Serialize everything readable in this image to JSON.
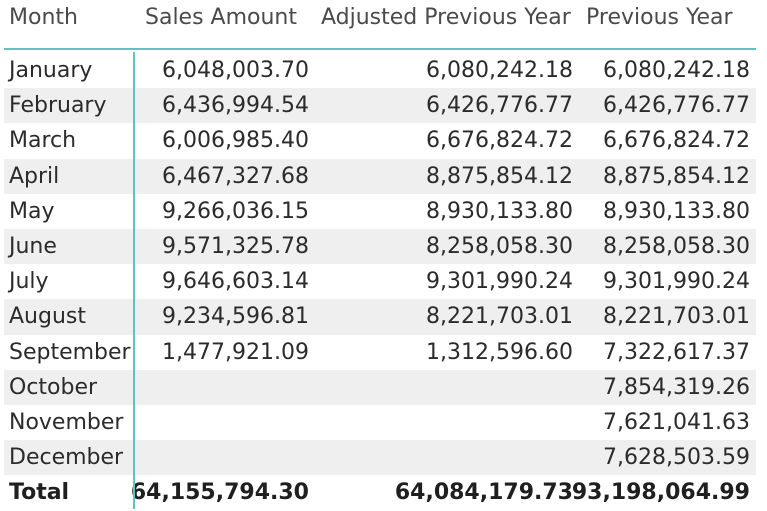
{
  "columns": {
    "month": "Month",
    "sales": "Sales Amount",
    "adjusted": "Adjusted Previous Year",
    "previous": "Previous Year"
  },
  "rows": [
    {
      "month": "January",
      "sales": "6,048,003.70",
      "adjusted": "6,080,242.18",
      "previous": "6,080,242.18"
    },
    {
      "month": "February",
      "sales": "6,436,994.54",
      "adjusted": "6,426,776.77",
      "previous": "6,426,776.77"
    },
    {
      "month": "March",
      "sales": "6,006,985.40",
      "adjusted": "6,676,824.72",
      "previous": "6,676,824.72"
    },
    {
      "month": "April",
      "sales": "6,467,327.68",
      "adjusted": "8,875,854.12",
      "previous": "8,875,854.12"
    },
    {
      "month": "May",
      "sales": "9,266,036.15",
      "adjusted": "8,930,133.80",
      "previous": "8,930,133.80"
    },
    {
      "month": "June",
      "sales": "9,571,325.78",
      "adjusted": "8,258,058.30",
      "previous": "8,258,058.30"
    },
    {
      "month": "July",
      "sales": "9,646,603.14",
      "adjusted": "9,301,990.24",
      "previous": "9,301,990.24"
    },
    {
      "month": "August",
      "sales": "9,234,596.81",
      "adjusted": "8,221,703.01",
      "previous": "8,221,703.01"
    },
    {
      "month": "September",
      "sales": "1,477,921.09",
      "adjusted": "1,312,596.60",
      "previous": "7,322,617.37"
    },
    {
      "month": "October",
      "sales": "",
      "adjusted": "",
      "previous": "7,854,319.26"
    },
    {
      "month": "November",
      "sales": "",
      "adjusted": "",
      "previous": "7,621,041.63"
    },
    {
      "month": "December",
      "sales": "",
      "adjusted": "",
      "previous": "7,628,503.59"
    }
  ],
  "total": {
    "label": "Total",
    "sales": "64,155,794.30",
    "adjusted": "64,084,179.73",
    "previous": "93,198,064.99"
  },
  "colors": {
    "divider": "#5fc3c3",
    "alt_row": "#efefef"
  }
}
